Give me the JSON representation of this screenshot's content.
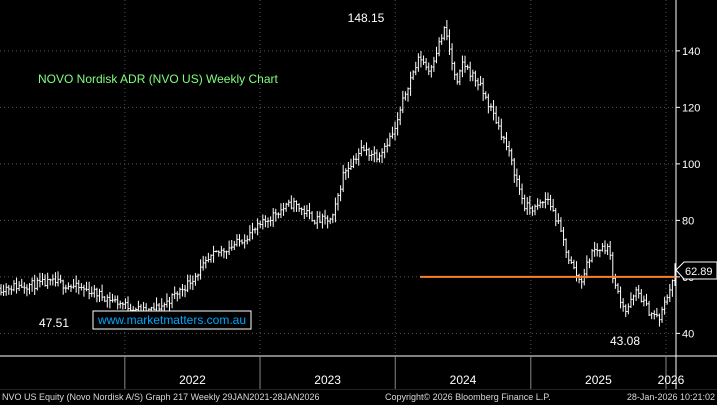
{
  "chart_data": {
    "type": "line",
    "style": "ohlc-bars",
    "title": "NOVO Nordisk ADR (NVO US) Weekly Chart",
    "watermark": "www.marketmatters.com.au",
    "x_ticks": [
      "2022",
      "2023",
      "2024",
      "2025",
      "2026"
    ],
    "y_ticks": [
      40,
      60,
      80,
      100,
      120,
      140
    ],
    "ylim": [
      32,
      158
    ],
    "annotations": {
      "high": "148.15",
      "low_2022": "47.51",
      "low_2025": "43.08"
    },
    "last_price_label": "62.89",
    "support_level": 60.0,
    "series": [
      {
        "x": [
          "2021-01-29",
          "2021-04-01",
          "2021-07-01",
          "2021-10-01",
          "2022-01-01",
          "2022-03-01",
          "2022-04-15",
          "2022-06-15",
          "2022-09-01",
          "2022-11-01",
          "2023-01-01",
          "2023-02-15",
          "2023-04-01",
          "2023-06-01",
          "2023-07-15",
          "2023-08-15",
          "2023-10-01",
          "2023-11-15",
          "2024-01-01",
          "2024-02-01",
          "2024-03-08",
          "2024-04-01",
          "2024-05-15",
          "2024-06-15",
          "2024-07-01",
          "2024-08-15",
          "2024-10-01",
          "2024-10-31",
          "2024-12-15",
          "2025-01-15",
          "2025-02-15",
          "2025-03-15",
          "2025-04-15",
          "2025-05-15",
          "2025-06-15",
          "2025-07-29",
          "2025-08-15",
          "2025-09-15",
          "2025-10-15",
          "2025-11-15",
          "2025-12-15",
          "2026-01-28"
        ],
        "values": [
          56,
          57,
          58,
          55,
          50,
          47.51,
          50,
          57,
          68,
          72,
          78,
          83,
          86,
          80,
          80,
          97,
          105,
          103,
          112,
          127,
          138,
          133,
          148.15,
          127,
          136,
          128,
          115,
          105,
          85,
          84,
          88,
          79,
          66,
          58,
          69,
          71,
          57,
          48,
          55,
          48,
          45,
          62.89
        ]
      }
    ],
    "colors": {
      "background": "#000000",
      "bars": "#ffffff",
      "title": "#7fff7f",
      "support_line": "#ff7f27",
      "grid": "#555555",
      "watermark_text": "#00a6ff",
      "watermark_border": "#ffffff"
    },
    "grid": true,
    "y_axis_position": "right"
  },
  "footer": {
    "left": "NVO US Equity (Novo Nordisk A/S) Graph 217 Weekly 29JAN2021-28JAN2026",
    "center": "Copyright© 2026 Bloomberg Finance L.P.",
    "right": "28-Jan-2026 10:21:02"
  }
}
